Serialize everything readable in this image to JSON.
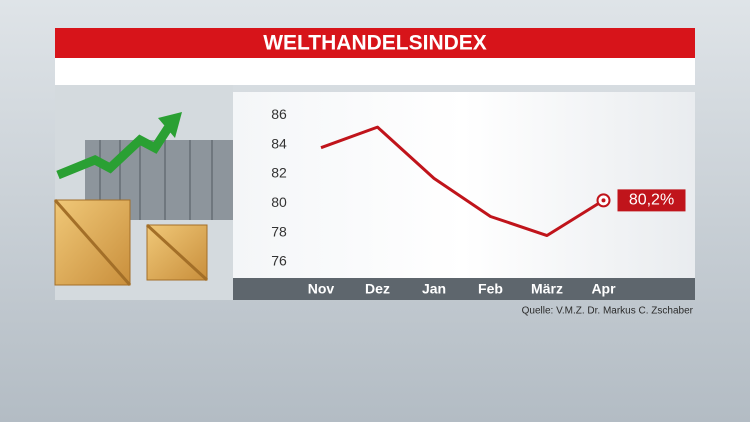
{
  "chart_data": {
    "type": "line",
    "title": "WELTHANDELSINDEX",
    "source": "Quelle: V.M.Z. Dr. Markus C. Zschaber",
    "categories": [
      "Nov",
      "Dez",
      "Jan",
      "Feb",
      "März",
      "Apr"
    ],
    "values": [
      83.8,
      85.2,
      81.7,
      79.1,
      77.8,
      80.2
    ],
    "value_labels": [
      null,
      null,
      null,
      null,
      null,
      "80,2%"
    ],
    "color": "#c0141b",
    "ylim": [
      74.9,
      87.6
    ],
    "yticks": [
      76,
      78,
      80,
      82,
      84,
      86
    ]
  }
}
